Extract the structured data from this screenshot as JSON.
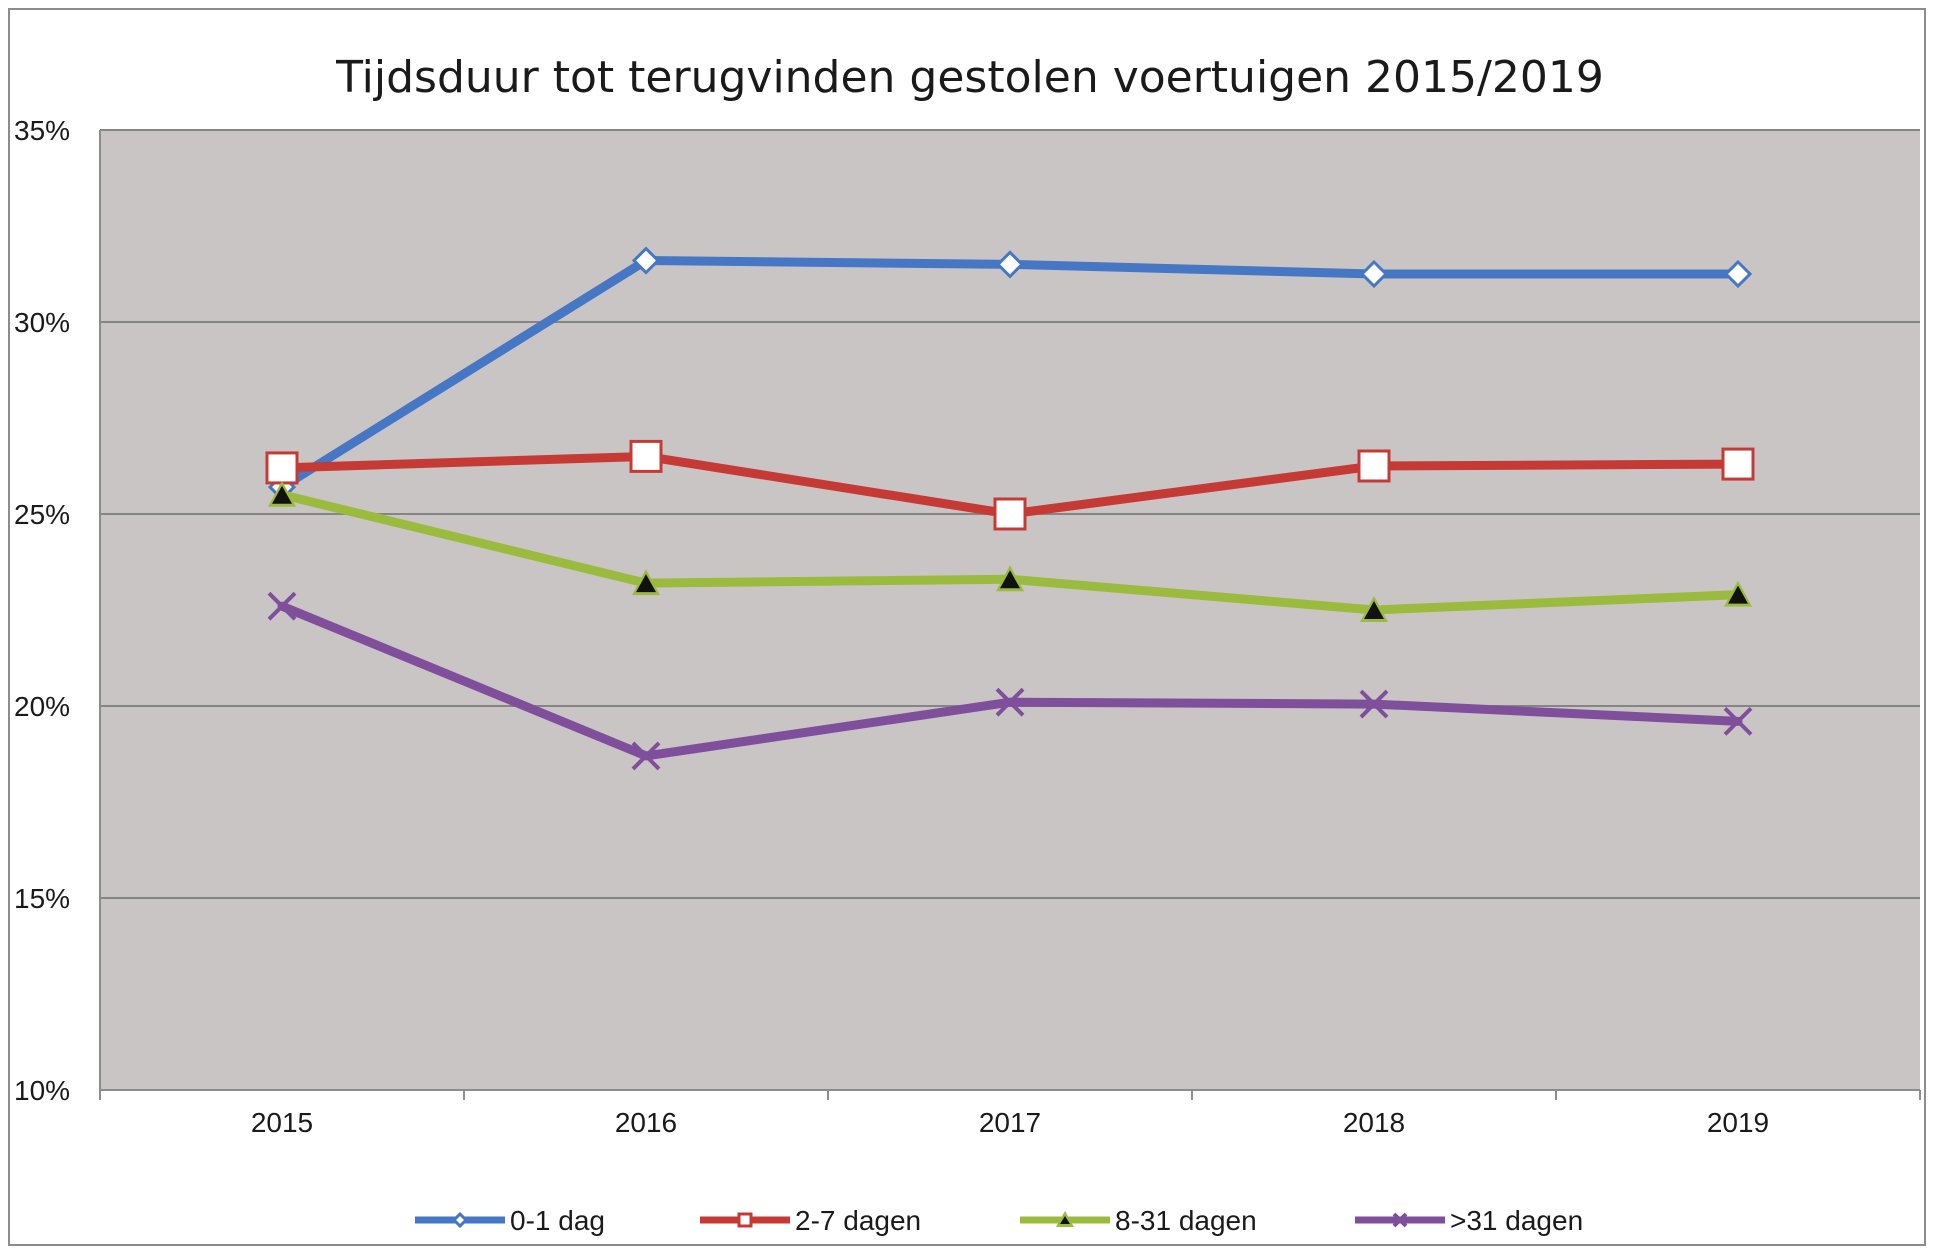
{
  "chart_data": {
    "type": "line",
    "title": "Tijdsduur tot terugvinden gestolen voertuigen 2015/2019",
    "xlabel": "",
    "ylabel": "",
    "categories": [
      "2015",
      "2016",
      "2017",
      "2018",
      "2019"
    ],
    "ylim": [
      10,
      35
    ],
    "y_ticks": [
      10,
      15,
      20,
      25,
      30,
      35
    ],
    "y_tick_labels": [
      "10%",
      "15%",
      "20%",
      "25%",
      "30%",
      "35%"
    ],
    "grid": true,
    "plot_background": "#cac5c5",
    "legend_position": "bottom",
    "series": [
      {
        "name": "0-1 dag",
        "values": [
          25.7,
          31.6,
          31.5,
          31.25,
          31.25
        ],
        "color": "#4677c4",
        "marker": "diamond-open"
      },
      {
        "name": "2-7 dagen",
        "values": [
          26.2,
          26.5,
          25.0,
          26.25,
          26.3
        ],
        "color": "#c63a35",
        "marker": "square-open"
      },
      {
        "name": "8-31 dagen",
        "values": [
          25.5,
          23.2,
          23.3,
          22.5,
          22.9
        ],
        "color": "#9bbb3f",
        "marker": "triangle-filled"
      },
      {
        "name": ">31 dagen",
        "values": [
          22.6,
          18.7,
          20.1,
          20.05,
          19.6
        ],
        "color": "#7f4f9c",
        "marker": "x"
      }
    ]
  }
}
